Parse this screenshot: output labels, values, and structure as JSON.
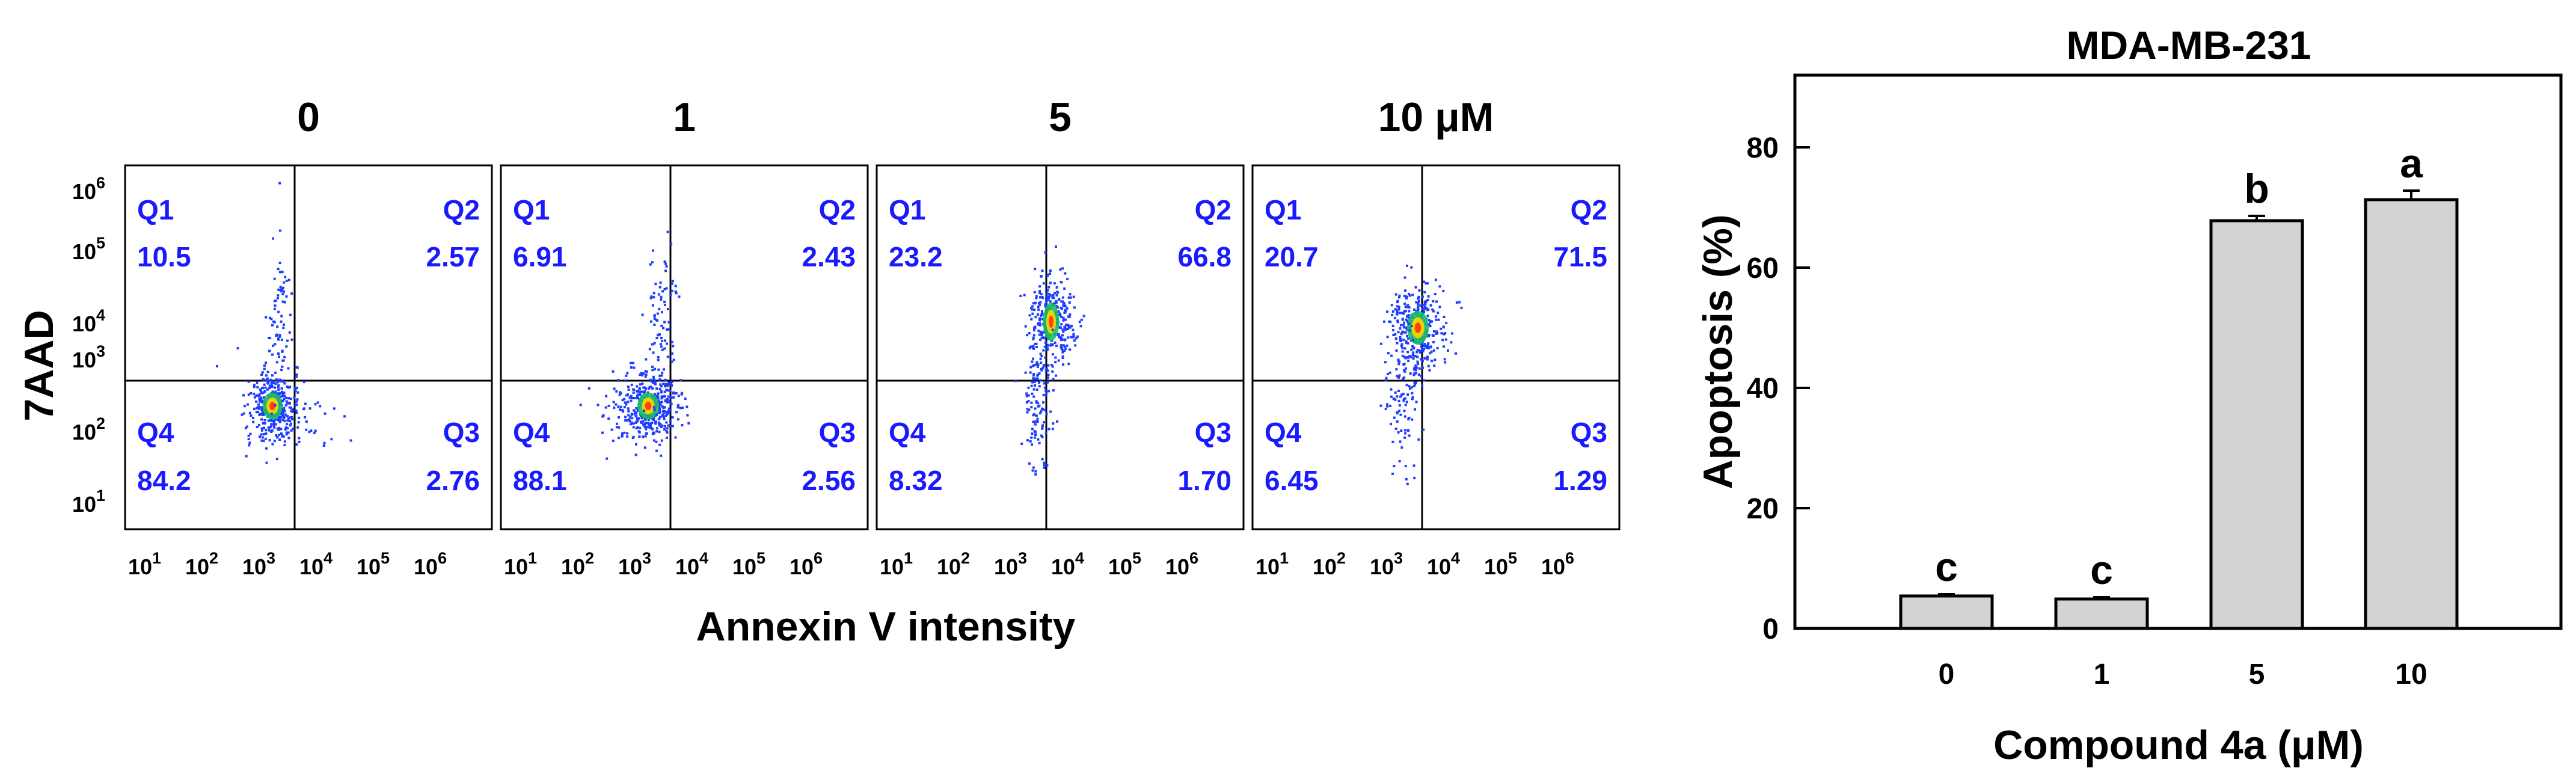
{
  "flow_panel": {
    "y_label": "7AAD",
    "x_label": "Annexin V intensity",
    "axis_ticks": [
      "10",
      "10",
      "10",
      "10",
      "10",
      "10"
    ],
    "exponents": [
      "1",
      "2",
      "3",
      "4",
      "5",
      "6"
    ],
    "panels": [
      {
        "title": "0",
        "q1": {
          "name": "Q1",
          "value": "10.5"
        },
        "q2": {
          "name": "Q2",
          "value": "2.57"
        },
        "q3": {
          "name": "Q3",
          "value": "2.76"
        },
        "q4": {
          "name": "Q4",
          "value": "84.2"
        }
      },
      {
        "title": "1",
        "q1": {
          "name": "Q1",
          "value": "6.91"
        },
        "q2": {
          "name": "Q2",
          "value": "2.43"
        },
        "q3": {
          "name": "Q3",
          "value": "2.56"
        },
        "q4": {
          "name": "Q4",
          "value": "88.1"
        }
      },
      {
        "title": "5",
        "q1": {
          "name": "Q1",
          "value": "23.2"
        },
        "q2": {
          "name": "Q2",
          "value": "66.8"
        },
        "q3": {
          "name": "Q3",
          "value": "1.70"
        },
        "q4": {
          "name": "Q4",
          "value": "8.32"
        }
      },
      {
        "title": "10 μM",
        "q1": {
          "name": "Q1",
          "value": "20.7"
        },
        "q2": {
          "name": "Q2",
          "value": "71.5"
        },
        "q3": {
          "name": "Q3",
          "value": "1.29"
        },
        "q4": {
          "name": "Q4",
          "value": "6.45"
        }
      }
    ],
    "colors": {
      "quadrant_text": "#1a1aff",
      "dots": "#1f3cff"
    }
  },
  "chart_data": {
    "type": "bar",
    "title": "MDA-MB-231",
    "xlabel": "Compound 4a (μM)",
    "ylabel": "Apoptosis (%)",
    "categories": [
      "0",
      "1",
      "5",
      "10"
    ],
    "values": [
      5.4,
      4.9,
      67.8,
      71.3
    ],
    "errors": [
      0.3,
      0.3,
      0.8,
      1.5
    ],
    "letters": [
      "c",
      "c",
      "b",
      "a"
    ],
    "ylim": [
      0,
      92
    ],
    "yticks": [
      0,
      20,
      40,
      60,
      80
    ],
    "grid": false,
    "bar_color": "#d3d3d3"
  }
}
